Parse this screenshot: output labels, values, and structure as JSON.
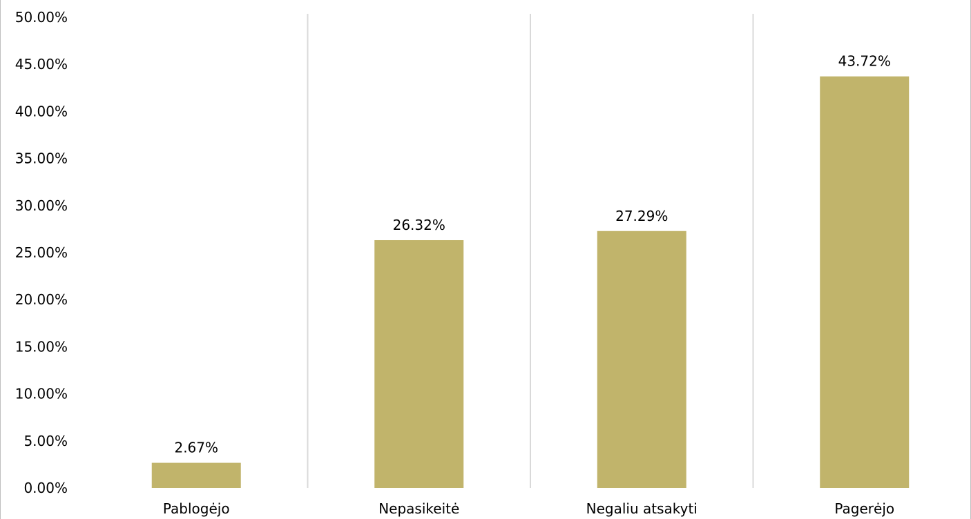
{
  "chart_data": {
    "type": "bar",
    "categories": [
      "Pablogėjo",
      "Nepasikeitė",
      "Negaliu atsakyti",
      "Pagerėjo"
    ],
    "values": [
      2.67,
      26.32,
      27.29,
      43.72
    ],
    "data_labels": [
      "2.67%",
      "26.32%",
      "27.29%",
      "43.72%"
    ],
    "y_tick_labels": [
      "0.00%",
      "5.00%",
      "10.00%",
      "15.00%",
      "20.00%",
      "25.00%",
      "30.00%",
      "35.00%",
      "40.00%",
      "45.00%",
      "50.00%"
    ],
    "ylim": [
      0,
      50
    ],
    "y_step": 5,
    "title": "",
    "xlabel": "",
    "ylabel": "",
    "grid": "vertical separators between categories",
    "legend": "none",
    "bar_color": "#c1b46b",
    "separator_color": "#d9d9d9"
  }
}
